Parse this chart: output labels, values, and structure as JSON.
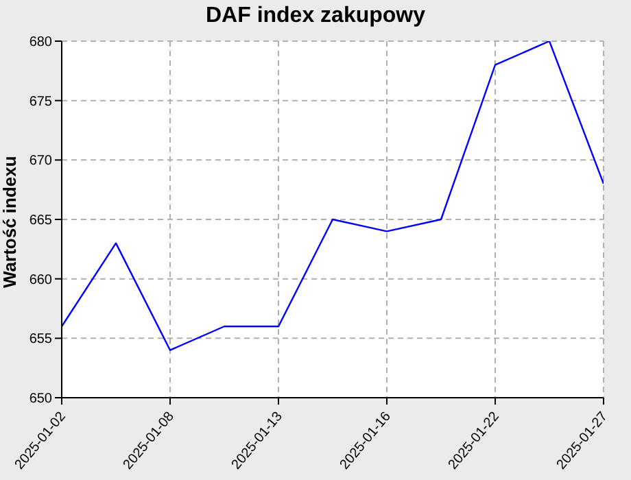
{
  "chart_data": {
    "type": "line",
    "title": "DAF index zakupowy",
    "ylabel": "Wartość indexu",
    "categories": [
      "2025-01-02",
      null,
      "2025-01-08",
      null,
      "2025-01-13",
      null,
      "2025-01-16",
      null,
      "2025-01-22",
      null,
      "2025-01-27"
    ],
    "series": [
      {
        "color": "#0000ff",
        "values": [
          656,
          663,
          654,
          656,
          656,
          665,
          664,
          665,
          678,
          680,
          668
        ]
      }
    ],
    "ylim": [
      650,
      680
    ],
    "yticks": [
      650,
      655,
      660,
      665,
      670,
      675,
      680
    ],
    "grid": true,
    "marker": "none",
    "line_style": "solid"
  }
}
